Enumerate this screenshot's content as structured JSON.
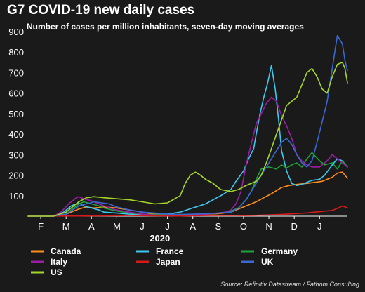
{
  "chart_data": {
    "type": "line",
    "title": "G7 COVID-19 new daily cases",
    "subtitle": "Number of cases per million inhabitants, seven-day moving averages",
    "source": "Source: Refinitiv Datastream / Fathom Consulting",
    "year_label": "2020",
    "y_ticks": [
      "100",
      "200",
      "300",
      "400",
      "500",
      "600",
      "700",
      "800",
      "900"
    ],
    "ylim": [
      0,
      900
    ],
    "x_ticks": [
      "F",
      "M",
      "A",
      "M",
      "J",
      "J",
      "A",
      "S",
      "O",
      "N",
      "D",
      "J"
    ],
    "xlim": [
      0,
      12.6
    ],
    "grid": false,
    "legend_position": "bottom",
    "series": [
      {
        "name": "Canada",
        "color": "#ff8c1a",
        "x": [
          0,
          1,
          1.5,
          2,
          2.3,
          2.6,
          3,
          3.5,
          4,
          4.5,
          5,
          5.5,
          6,
          6.5,
          7,
          7.5,
          8,
          8.3,
          8.6,
          9,
          9.3,
          9.6,
          10,
          10.3,
          10.6,
          11,
          11.3,
          11.6,
          12,
          12.2,
          12.4,
          12.6
        ],
        "y": [
          0,
          0,
          10,
          35,
          45,
          40,
          45,
          40,
          30,
          20,
          10,
          8,
          8,
          8,
          10,
          12,
          20,
          35,
          50,
          70,
          90,
          110,
          140,
          150,
          155,
          160,
          165,
          170,
          190,
          210,
          215,
          185
        ]
      },
      {
        "name": "France",
        "color": "#3ec7f0",
        "x": [
          0,
          1,
          1.4,
          1.7,
          2,
          2.2,
          2.5,
          2.8,
          3,
          3.5,
          4,
          4.5,
          5,
          5.5,
          6,
          6.5,
          7,
          7.3,
          7.6,
          8,
          8.2,
          8.5,
          8.7,
          8.9,
          9,
          9.15,
          9.3,
          9.45,
          9.6,
          9.75,
          9.9,
          10,
          10.2,
          10.4,
          10.6,
          10.8,
          11,
          11.2,
          11.5,
          11.7,
          12,
          12.2,
          12.4,
          12.6
        ],
        "y": [
          0,
          0,
          20,
          50,
          65,
          50,
          40,
          30,
          20,
          15,
          10,
          8,
          8,
          10,
          20,
          40,
          60,
          80,
          100,
          130,
          170,
          220,
          280,
          330,
          400,
          500,
          580,
          650,
          735,
          620,
          450,
          320,
          220,
          160,
          150,
          155,
          165,
          175,
          180,
          200,
          250,
          280,
          270,
          240
        ]
      },
      {
        "name": "Germany",
        "color": "#1ea33a",
        "x": [
          0,
          1,
          1.5,
          2,
          2.2,
          2.5,
          2.8,
          3,
          3.5,
          4,
          4.5,
          5,
          5.5,
          6,
          6.5,
          7,
          7.5,
          7.8,
          8,
          8.3,
          8.6,
          8.8,
          9,
          9.2,
          9.5,
          9.8,
          10,
          10.2,
          10.4,
          10.6,
          10.8,
          11,
          11.2,
          11.5,
          11.7,
          12,
          12.2,
          12.4,
          12.6
        ],
        "y": [
          0,
          0,
          10,
          60,
          70,
          60,
          50,
          40,
          25,
          15,
          10,
          8,
          8,
          6,
          8,
          12,
          15,
          20,
          25,
          40,
          80,
          120,
          180,
          230,
          240,
          230,
          250,
          235,
          250,
          260,
          240,
          280,
          310,
          270,
          250,
          260,
          230,
          270,
          240
        ]
      },
      {
        "name": "Italy",
        "color": "#9a1ea5",
        "x": [
          0,
          1,
          1.3,
          1.6,
          1.9,
          2,
          2.2,
          2.5,
          2.8,
          3,
          3.5,
          4,
          4.5,
          5,
          5.5,
          6,
          6.5,
          7,
          7.5,
          7.8,
          8,
          8.2,
          8.4,
          8.6,
          8.8,
          9,
          9.2,
          9.4,
          9.6,
          9.8,
          10,
          10.2,
          10.4,
          10.6,
          10.8,
          11,
          11.2,
          11.5,
          11.8,
          12,
          12.2,
          12.4,
          12.6
        ],
        "y": [
          0,
          0,
          20,
          60,
          90,
          95,
          85,
          75,
          60,
          50,
          30,
          20,
          10,
          5,
          5,
          5,
          5,
          10,
          15,
          20,
          30,
          60,
          120,
          250,
          350,
          450,
          500,
          550,
          580,
          560,
          490,
          440,
          380,
          300,
          270,
          250,
          240,
          240,
          270,
          300,
          280,
          260,
          240
        ]
      },
      {
        "name": "Japan",
        "color": "#d51a1a",
        "x": [
          0,
          2,
          3,
          4,
          5,
          6,
          7,
          8,
          8.5,
          9,
          9.5,
          10,
          10.5,
          11,
          11.5,
          12,
          12.2,
          12.4,
          12.6
        ],
        "y": [
          0,
          1,
          2,
          3,
          2,
          1,
          3,
          4,
          3,
          4,
          6,
          9,
          12,
          16,
          22,
          28,
          38,
          50,
          40
        ]
      },
      {
        "name": "UK",
        "color": "#3a68d1",
        "x": [
          0,
          1,
          1.5,
          2,
          2.3,
          2.6,
          2.9,
          3.2,
          3.5,
          4,
          4.5,
          5,
          5.5,
          6,
          6.5,
          7,
          7.5,
          8,
          8.3,
          8.6,
          8.9,
          9.2,
          9.5,
          9.7,
          9.9,
          10,
          10.2,
          10.4,
          10.6,
          10.8,
          11,
          11.2,
          11.4,
          11.6,
          11.8,
          12,
          12.1,
          12.2,
          12.4,
          12.5,
          12.6
        ],
        "y": [
          0,
          0,
          10,
          50,
          60,
          70,
          65,
          60,
          45,
          30,
          20,
          15,
          10,
          8,
          10,
          12,
          15,
          20,
          40,
          80,
          140,
          200,
          260,
          300,
          340,
          360,
          380,
          350,
          300,
          260,
          240,
          270,
          360,
          460,
          560,
          720,
          800,
          880,
          840,
          760,
          710
        ]
      },
      {
        "name": "US",
        "color": "#a5d52a",
        "x": [
          0,
          1,
          1.5,
          2,
          2.3,
          2.6,
          3,
          3.5,
          4,
          4.5,
          5,
          5.5,
          6,
          6.2,
          6.4,
          6.6,
          6.8,
          7,
          7.3,
          7.6,
          8,
          8.3,
          8.6,
          9,
          9.2,
          9.4,
          9.6,
          9.8,
          10,
          10.2,
          10.4,
          10.6,
          10.8,
          11,
          11.2,
          11.4,
          11.6,
          11.8,
          12,
          12.2,
          12.4,
          12.5,
          12.6
        ],
        "y": [
          0,
          0,
          20,
          70,
          90,
          95,
          90,
          85,
          80,
          70,
          60,
          65,
          100,
          160,
          200,
          215,
          200,
          180,
          160,
          130,
          120,
          130,
          150,
          170,
          200,
          260,
          330,
          400,
          470,
          540,
          560,
          580,
          640,
          700,
          720,
          680,
          620,
          600,
          680,
          740,
          750,
          720,
          650
        ]
      }
    ]
  }
}
